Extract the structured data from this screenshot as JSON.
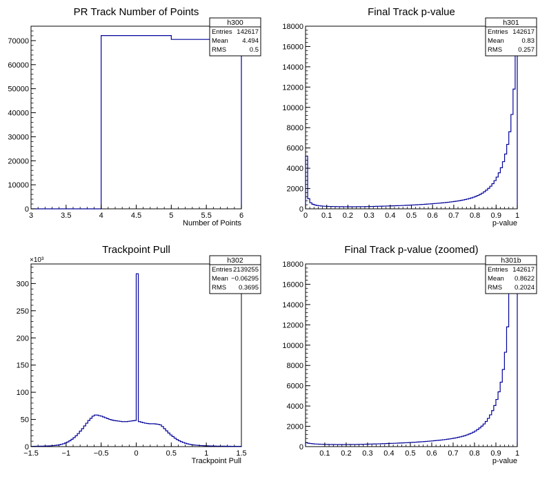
{
  "chart_data": [
    {
      "type": "histogram",
      "title": "PR Track Number of Points",
      "xlabel": "Number of Points",
      "ylabel": "",
      "xlim": [
        3,
        6
      ],
      "ylim": [
        0,
        76000
      ],
      "x_ticks": [
        "3",
        "3.5",
        "4",
        "4.5",
        "5",
        "5.5",
        "6"
      ],
      "y_ticks": [
        "0",
        "10000",
        "20000",
        "30000",
        "40000",
        "50000",
        "60000",
        "70000"
      ],
      "bin_edges": [
        3,
        4,
        5,
        6
      ],
      "counts": [
        0,
        72100,
        70500
      ],
      "stats": {
        "name": "h300",
        "rows": [
          {
            "label": "Entries",
            "value": "142617"
          },
          {
            "label": "Mean",
            "value": "4.494"
          },
          {
            "label": "RMS",
            "value": "0.5"
          }
        ]
      }
    },
    {
      "type": "histogram",
      "title": "Final Track p-value",
      "xlabel": "p-value",
      "ylabel": "",
      "xlim": [
        0,
        1
      ],
      "ylim": [
        0,
        18000
      ],
      "x_ticks": [
        "0",
        "0.1",
        "0.2",
        "0.3",
        "0.4",
        "0.5",
        "0.6",
        "0.7",
        "0.8",
        "0.9",
        "1"
      ],
      "y_ticks": [
        "0",
        "2000",
        "4000",
        "6000",
        "8000",
        "10000",
        "12000",
        "14000",
        "16000",
        "18000"
      ],
      "bins": 100,
      "counts": [
        5200,
        1000,
        600,
        450,
        380,
        330,
        300,
        280,
        260,
        250,
        240,
        235,
        230,
        225,
        220,
        215,
        212,
        210,
        208,
        206,
        205,
        205,
        205,
        207,
        210,
        212,
        215,
        218,
        222,
        226,
        230,
        235,
        240,
        245,
        250,
        255,
        262,
        268,
        275,
        282,
        290,
        297,
        305,
        312,
        320,
        328,
        337,
        346,
        356,
        366,
        377,
        388,
        400,
        412,
        425,
        438,
        452,
        466,
        480,
        495,
        512,
        530,
        548,
        566,
        586,
        606,
        628,
        650,
        675,
        700,
        730,
        760,
        795,
        830,
        870,
        915,
        965,
        1020,
        1080,
        1150,
        1230,
        1320,
        1420,
        1540,
        1680,
        1840,
        2020,
        2230,
        2480,
        2780,
        3130,
        3550,
        4050,
        4650,
        5400,
        6350,
        7600,
        9300,
        11800,
        15500
      ],
      "stats": {
        "name": "h301",
        "rows": [
          {
            "label": "Entries",
            "value": "142617"
          },
          {
            "label": "Mean",
            "value": "0.83"
          },
          {
            "label": "RMS",
            "value": "0.257"
          }
        ]
      }
    },
    {
      "type": "histogram",
      "title": "Trackpoint Pull",
      "xlabel": "Trackpoint Pull",
      "ylabel": "",
      "y_exponent_label": "×10³",
      "xlim": [
        -1.5,
        1.5
      ],
      "ylim": [
        0,
        336
      ],
      "x_ticks": [
        "−1.5",
        "−1",
        "−0.5",
        "0",
        "0.5",
        "1",
        "1.5"
      ],
      "y_ticks": [
        "0",
        "50",
        "100",
        "150",
        "200",
        "250",
        "300"
      ],
      "bins": 100,
      "counts": [
        0.5,
        0.5,
        0.6,
        0.7,
        0.8,
        0.9,
        1,
        1.1,
        1.3,
        1.5,
        1.8,
        2.2,
        2.7,
        3.3,
        4.2,
        5.3,
        6.8,
        8.6,
        10.8,
        13.5,
        16.5,
        20,
        24,
        28.5,
        33,
        38,
        43,
        48,
        52,
        56,
        58,
        58,
        57,
        56,
        54.5,
        53,
        51.5,
        50,
        49,
        48,
        47.5,
        47,
        46.5,
        46,
        46,
        46,
        46.5,
        47,
        47.5,
        48,
        318,
        46,
        45,
        44,
        43,
        42.5,
        42,
        42,
        42,
        41.5,
        41,
        40,
        37,
        33,
        29,
        25,
        21.5,
        18.5,
        15.5,
        13,
        10.8,
        9,
        7.5,
        6.2,
        5.1,
        4.2,
        3.5,
        3,
        2.6,
        2.3,
        2,
        1.8,
        1.6,
        1.4,
        1.3,
        1.2,
        1.1,
        1,
        0.9,
        0.85,
        0.8,
        0.75,
        0.7,
        0.65,
        0.6,
        0.55,
        0.5,
        0.5,
        0.5,
        0.5
      ],
      "stats": {
        "name": "h302",
        "rows": [
          {
            "label": "Entries",
            "value": "2139255"
          },
          {
            "label": "Mean",
            "value": "−0.06295"
          },
          {
            "label": "RMS",
            "value": "0.3695"
          }
        ]
      }
    },
    {
      "type": "histogram",
      "title": "Final Track p-value (zoomed)",
      "xlabel": "p-value",
      "ylabel": "",
      "xlim": [
        0.01,
        1
      ],
      "ylim": [
        0,
        18000
      ],
      "x_ticks": [
        "0.1",
        "0.2",
        "0.3",
        "0.4",
        "0.5",
        "0.6",
        "0.7",
        "0.8",
        "0.9",
        "1"
      ],
      "y_ticks": [
        "0",
        "2000",
        "4000",
        "6000",
        "8000",
        "10000",
        "12000",
        "14000",
        "16000",
        "18000"
      ],
      "bins": 99,
      "counts": [
        380,
        330,
        300,
        280,
        260,
        250,
        240,
        235,
        230,
        225,
        220,
        215,
        212,
        210,
        208,
        206,
        205,
        205,
        205,
        207,
        210,
        212,
        215,
        218,
        222,
        226,
        230,
        235,
        240,
        245,
        250,
        255,
        262,
        268,
        275,
        282,
        290,
        297,
        305,
        312,
        320,
        328,
        337,
        346,
        356,
        366,
        377,
        388,
        400,
        412,
        425,
        438,
        452,
        466,
        480,
        495,
        512,
        530,
        548,
        566,
        586,
        606,
        628,
        650,
        675,
        700,
        730,
        760,
        795,
        830,
        870,
        915,
        965,
        1020,
        1080,
        1150,
        1230,
        1320,
        1420,
        1540,
        1680,
        1840,
        2020,
        2230,
        2480,
        2780,
        3130,
        3550,
        4050,
        4650,
        5400,
        6350,
        7600,
        9300,
        11800,
        15500,
        15500,
        15500,
        15500
      ],
      "stats": {
        "name": "h301b",
        "rows": [
          {
            "label": "Entries",
            "value": "142617"
          },
          {
            "label": "Mean",
            "value": "0.8622"
          },
          {
            "label": "RMS",
            "value": "0.2024"
          }
        ]
      }
    }
  ],
  "colors": {
    "line": "#000099",
    "frame": "#000000",
    "background": "#ffffff"
  }
}
